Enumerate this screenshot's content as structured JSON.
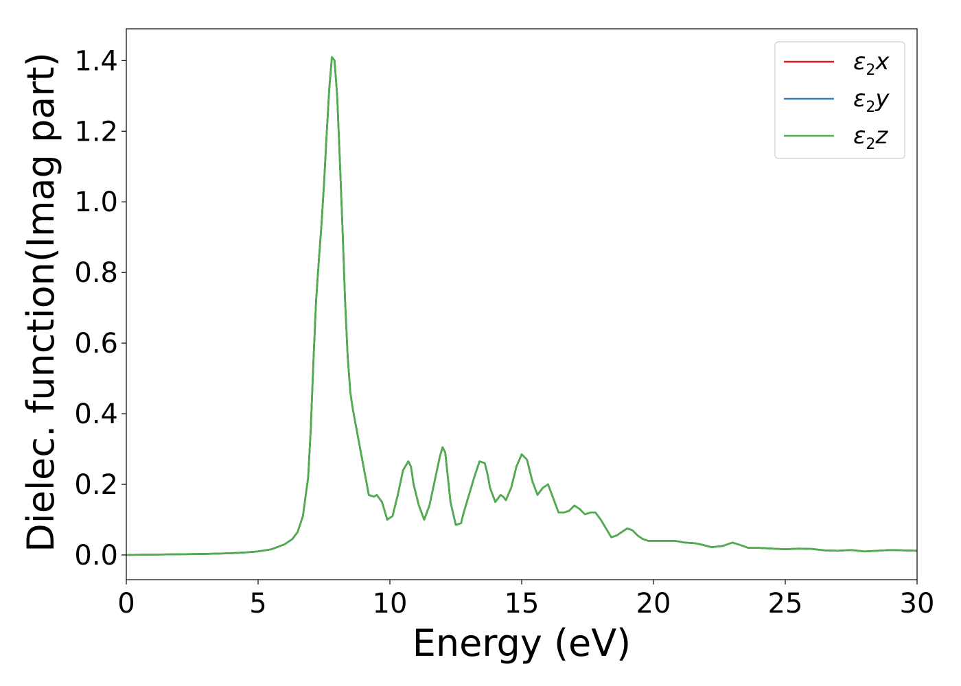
{
  "chart_data": {
    "type": "line",
    "title": "",
    "xlabel": "Energy (eV)",
    "ylabel": "Dielec. function(Imag part)",
    "xlim": [
      0,
      30
    ],
    "ylim": [
      -0.07,
      1.49
    ],
    "xticks": [
      "0",
      "5",
      "10",
      "15",
      "20",
      "25",
      "30"
    ],
    "yticks": [
      "0.0",
      "0.2",
      "0.4",
      "0.6",
      "0.8",
      "1.0",
      "1.2",
      "1.4"
    ],
    "grid": false,
    "legend_position": "top-right",
    "series": [
      {
        "name_sym": "ε",
        "name_sub": "2",
        "name_axis": "x",
        "color": "#e41a1c"
      },
      {
        "name_sym": "ε",
        "name_sub": "2",
        "name_axis": "y",
        "color": "#377eb8"
      },
      {
        "name_sym": "ε",
        "name_sub": "2",
        "name_axis": "z",
        "color": "#4daf4a"
      }
    ],
    "x": [
      0,
      1,
      2,
      3,
      4,
      4.5,
      5,
      5.5,
      6,
      6.3,
      6.5,
      6.7,
      6.9,
      7.0,
      7.1,
      7.2,
      7.3,
      7.4,
      7.5,
      7.6,
      7.7,
      7.8,
      7.9,
      8.0,
      8.1,
      8.2,
      8.3,
      8.4,
      8.5,
      8.6,
      8.7,
      8.8,
      9.0,
      9.2,
      9.4,
      9.5,
      9.7,
      9.9,
      10.1,
      10.3,
      10.5,
      10.7,
      10.8,
      10.9,
      11.1,
      11.3,
      11.5,
      11.7,
      11.9,
      12.0,
      12.1,
      12.2,
      12.3,
      12.5,
      12.7,
      12.8,
      13.0,
      13.2,
      13.4,
      13.6,
      13.7,
      13.8,
      14.0,
      14.2,
      14.3,
      14.4,
      14.6,
      14.8,
      15.0,
      15.2,
      15.4,
      15.6,
      15.8,
      16.0,
      16.2,
      16.4,
      16.6,
      16.8,
      17.0,
      17.2,
      17.4,
      17.6,
      17.8,
      18.0,
      18.2,
      18.4,
      18.6,
      18.8,
      19.0,
      19.2,
      19.4,
      19.6,
      19.8,
      20.0,
      20.4,
      20.8,
      21.2,
      21.6,
      21.9,
      22.2,
      22.6,
      23.0,
      23.3,
      23.6,
      24.0,
      24.5,
      25.0,
      25.5,
      26.0,
      26.5,
      27.0,
      27.5,
      28.0,
      28.5,
      29.0,
      29.5,
      30.0
    ],
    "y": [
      0.0,
      0.001,
      0.002,
      0.003,
      0.005,
      0.007,
      0.01,
      0.016,
      0.03,
      0.045,
      0.065,
      0.11,
      0.22,
      0.36,
      0.55,
      0.72,
      0.83,
      0.93,
      1.05,
      1.19,
      1.32,
      1.41,
      1.4,
      1.3,
      1.12,
      0.93,
      0.72,
      0.56,
      0.46,
      0.41,
      0.37,
      0.33,
      0.25,
      0.17,
      0.165,
      0.17,
      0.15,
      0.1,
      0.11,
      0.17,
      0.24,
      0.265,
      0.25,
      0.2,
      0.14,
      0.1,
      0.14,
      0.21,
      0.28,
      0.305,
      0.29,
      0.22,
      0.15,
      0.085,
      0.09,
      0.12,
      0.17,
      0.22,
      0.265,
      0.26,
      0.23,
      0.19,
      0.15,
      0.17,
      0.165,
      0.155,
      0.19,
      0.25,
      0.285,
      0.27,
      0.21,
      0.17,
      0.19,
      0.2,
      0.16,
      0.12,
      0.12,
      0.125,
      0.14,
      0.13,
      0.115,
      0.12,
      0.12,
      0.1,
      0.075,
      0.05,
      0.055,
      0.065,
      0.075,
      0.07,
      0.055,
      0.045,
      0.04,
      0.04,
      0.04,
      0.04,
      0.035,
      0.033,
      0.028,
      0.022,
      0.025,
      0.035,
      0.028,
      0.02,
      0.02,
      0.018,
      0.016,
      0.018,
      0.017,
      0.013,
      0.012,
      0.014,
      0.01,
      0.012,
      0.014,
      0.013,
      0.012
    ]
  }
}
